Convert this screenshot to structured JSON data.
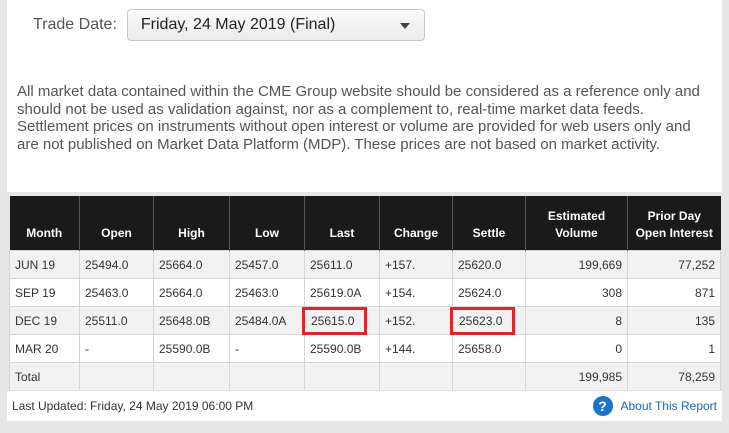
{
  "trade_date": {
    "label": "Trade Date:",
    "selected": "Friday, 24 May 2019 (Final)"
  },
  "disclaimer": "All market data contained within the CME Group website should be considered as a reference only and should not be used as validation against, nor as a complement to, real-time market data feeds. Settlement prices on instruments without open interest or volume are provided for web users only and are not published on Market Data Platform (MDP). These prices are not based on market activity.",
  "table": {
    "headers": [
      "Month",
      "Open",
      "High",
      "Low",
      "Last",
      "Change",
      "Settle",
      "Estimated Volume",
      "Prior Day Open Interest"
    ],
    "rows": [
      [
        "JUN 19",
        "25494.0",
        "25664.0",
        "25457.0",
        "25611.0",
        "+157.",
        "25620.0",
        "199,669",
        "77,252"
      ],
      [
        "SEP 19",
        "25463.0",
        "25664.0",
        "25463.0",
        "25619.0A",
        "+154.",
        "25624.0",
        "308",
        "871"
      ],
      [
        "DEC 19",
        "25511.0",
        "25648.0B",
        "25484.0A",
        "25615.0",
        "+152.",
        "25623.0",
        "8",
        "135"
      ],
      [
        "MAR 20",
        "-",
        "25590.0B",
        "-",
        "25590.0B",
        "+144.",
        "25658.0",
        "0",
        "1"
      ]
    ],
    "total": [
      "Total",
      "",
      "",
      "",
      "",
      "",
      "",
      "199,985",
      "78,259"
    ]
  },
  "footer": {
    "last_updated": "Last Updated: Friday, 24 May 2019 06:00 PM",
    "about_link": "About This Report",
    "help_icon": "help-circle-icon"
  },
  "colors": {
    "header_bg": "#1a1a1a",
    "highlight": "#e0242a",
    "link": "#1a66b3"
  }
}
